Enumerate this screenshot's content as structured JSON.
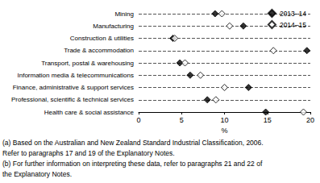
{
  "chart_data": {
    "type": "scatter",
    "orientation": "horizontal",
    "categories": [
      "Mining",
      "Manufacturing",
      "Construction & utilities",
      "Trade & accommodation",
      "Transport, postal & warehousing",
      "Information media & telecommunications",
      "Finance, administrative & support services",
      "Professional, scientific & technical services",
      "Health care & social assistance"
    ],
    "series": [
      {
        "name": "2013–14",
        "color": "#000000",
        "marker": "diamond",
        "values": [
          8.9,
          12.2,
          4.0,
          19.6,
          4.8,
          6.0,
          12.8,
          8.0,
          14.8
        ]
      },
      {
        "name": "2014–15",
        "color": "#000000",
        "marker": "open-diamond",
        "values": [
          9.7,
          10.6,
          4.2,
          15.7,
          5.4,
          7.2,
          10.0,
          9.0,
          19.2
        ]
      }
    ],
    "x_label": "%",
    "xlim": [
      0,
      20
    ],
    "xticks": [
      0,
      5,
      10,
      15,
      20
    ],
    "grid": true,
    "legend": "top-right",
    "footnotes": [
      "(a) Based on the Australian and New Zealand Standard Industrial Classification, 2006.",
      "Refer to paragraphs 17 and 19 of the Explanatory Notes.",
      "(b) For further information on interpreting these data, refer to paragraphs 21 and 22 of",
      "the Explanatory Notes."
    ]
  }
}
